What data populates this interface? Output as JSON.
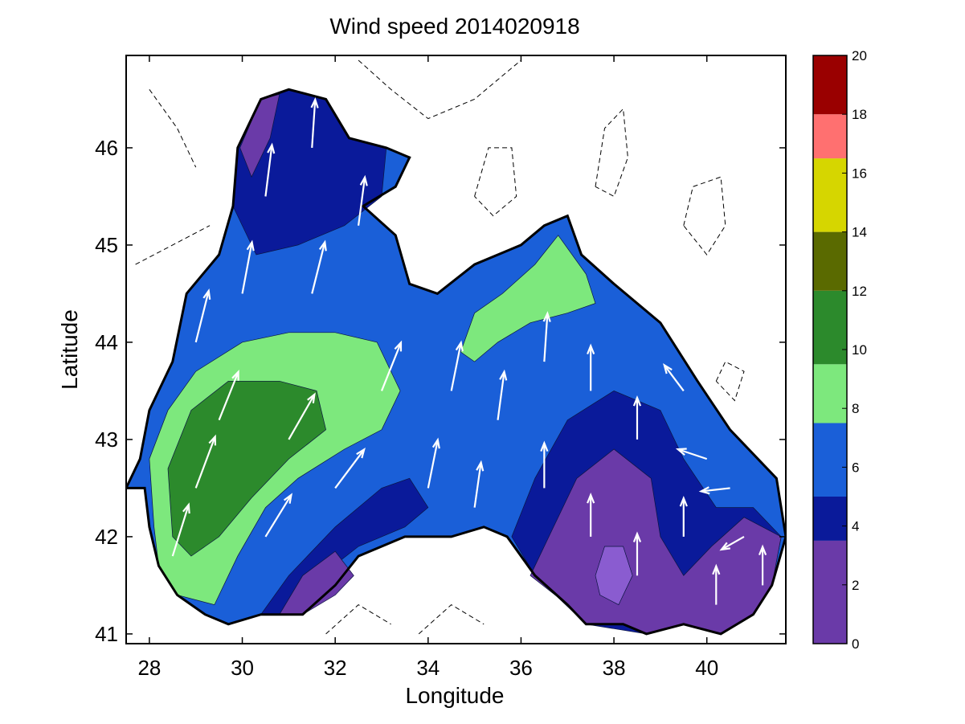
{
  "chart_data": {
    "type": "contour-map",
    "title": "Wind speed 2014020918",
    "xlabel": "Longitude",
    "ylabel": "Latitude",
    "xlim": [
      27.5,
      41.7
    ],
    "ylim": [
      40.9,
      46.95
    ],
    "xticks": [
      28,
      30,
      32,
      34,
      36,
      38,
      40
    ],
    "yticks": [
      41,
      42,
      43,
      44,
      45,
      46
    ],
    "colorbar": {
      "range": [
        0,
        20
      ],
      "ticks": [
        0,
        2,
        4,
        6,
        8,
        10,
        12,
        14,
        16,
        18,
        20
      ],
      "bands": [
        {
          "from": 0,
          "to": 3.5,
          "color": "#6a3aa8"
        },
        {
          "from": 3.5,
          "to": 5,
          "color": "#0a1a9a"
        },
        {
          "from": 5,
          "to": 7.5,
          "color": "#1a5fd8"
        },
        {
          "from": 7.5,
          "to": 9.5,
          "color": "#7de87d"
        },
        {
          "from": 9.5,
          "to": 12,
          "color": "#2c8a2c"
        },
        {
          "from": 12,
          "to": 14,
          "color": "#5a6a00"
        },
        {
          "from": 14,
          "to": 16.5,
          "color": "#d6d600"
        },
        {
          "from": 16.5,
          "to": 18,
          "color": "#ff7070"
        },
        {
          "from": 18,
          "to": 20,
          "color": "#9a0000"
        }
      ]
    },
    "regions": [
      {
        "name": "basin",
        "level": 5.5,
        "color": "#1a5fd8",
        "lonlat": [
          [
            27.5,
            42.5
          ],
          [
            27.8,
            42.8
          ],
          [
            28.0,
            43.3
          ],
          [
            28.5,
            43.8
          ],
          [
            28.8,
            44.5
          ],
          [
            29.5,
            44.9
          ],
          [
            29.8,
            45.4
          ],
          [
            29.9,
            46.0
          ],
          [
            30.4,
            46.5
          ],
          [
            31.0,
            46.6
          ],
          [
            31.8,
            46.5
          ],
          [
            32.3,
            46.1
          ],
          [
            33.1,
            46.0
          ],
          [
            33.6,
            45.9
          ],
          [
            33.3,
            45.6
          ],
          [
            32.6,
            45.4
          ],
          [
            33.3,
            45.1
          ],
          [
            33.6,
            44.6
          ],
          [
            34.2,
            44.5
          ],
          [
            35.0,
            44.8
          ],
          [
            36.0,
            45.0
          ],
          [
            36.5,
            45.2
          ],
          [
            37.0,
            45.3
          ],
          [
            37.3,
            44.9
          ],
          [
            38.0,
            44.6
          ],
          [
            39.0,
            44.2
          ],
          [
            39.8,
            43.6
          ],
          [
            40.5,
            43.1
          ],
          [
            41.5,
            42.6
          ],
          [
            41.7,
            42.0
          ],
          [
            41.4,
            41.5
          ],
          [
            41.0,
            41.2
          ],
          [
            40.3,
            41.0
          ],
          [
            39.5,
            41.1
          ],
          [
            38.7,
            41.0
          ],
          [
            38.2,
            41.1
          ],
          [
            37.4,
            41.1
          ],
          [
            37.0,
            41.3
          ],
          [
            36.3,
            41.6
          ],
          [
            35.7,
            42.0
          ],
          [
            35.2,
            42.1
          ],
          [
            34.5,
            42.0
          ],
          [
            33.5,
            42.0
          ],
          [
            33.0,
            41.9
          ],
          [
            32.5,
            41.8
          ],
          [
            32.0,
            41.5
          ],
          [
            31.3,
            41.2
          ],
          [
            30.4,
            41.2
          ],
          [
            29.7,
            41.1
          ],
          [
            29.2,
            41.2
          ],
          [
            28.6,
            41.4
          ],
          [
            28.2,
            41.7
          ],
          [
            28.0,
            42.1
          ],
          [
            27.9,
            42.5
          ]
        ]
      },
      {
        "name": "band-dark-nw",
        "level": 4.2,
        "color": "#0a1a9a",
        "lonlat": [
          [
            29.9,
            46.0
          ],
          [
            30.4,
            46.5
          ],
          [
            31.0,
            46.6
          ],
          [
            31.8,
            46.5
          ],
          [
            32.3,
            46.1
          ],
          [
            33.1,
            46.0
          ],
          [
            33.0,
            45.5
          ],
          [
            32.2,
            45.2
          ],
          [
            31.2,
            45.0
          ],
          [
            30.3,
            44.9
          ],
          [
            29.8,
            45.4
          ]
        ]
      },
      {
        "name": "band-purple-nw",
        "level": 2.5,
        "color": "#6a3aa8",
        "lonlat": [
          [
            29.95,
            46.0
          ],
          [
            30.4,
            46.5
          ],
          [
            30.8,
            46.55
          ],
          [
            30.6,
            46.1
          ],
          [
            30.2,
            45.7
          ]
        ]
      },
      {
        "name": "band-light-green-w",
        "level": 8.5,
        "color": "#7de87d",
        "lonlat": [
          [
            28.1,
            42.1
          ],
          [
            28.0,
            42.8
          ],
          [
            28.4,
            43.3
          ],
          [
            29.0,
            43.7
          ],
          [
            30.0,
            44.0
          ],
          [
            31.0,
            44.1
          ],
          [
            32.0,
            44.1
          ],
          [
            32.9,
            44.0
          ],
          [
            33.4,
            43.5
          ],
          [
            33.0,
            43.1
          ],
          [
            32.2,
            42.9
          ],
          [
            31.2,
            42.6
          ],
          [
            30.5,
            42.3
          ],
          [
            29.9,
            41.8
          ],
          [
            29.4,
            41.3
          ],
          [
            28.6,
            41.4
          ],
          [
            28.2,
            41.7
          ]
        ]
      },
      {
        "name": "band-green-w",
        "level": 10.5,
        "color": "#2c8a2c",
        "lonlat": [
          [
            28.5,
            42.0
          ],
          [
            28.4,
            42.7
          ],
          [
            28.9,
            43.3
          ],
          [
            29.7,
            43.6
          ],
          [
            30.8,
            43.6
          ],
          [
            31.6,
            43.5
          ],
          [
            31.8,
            43.1
          ],
          [
            31.0,
            42.8
          ],
          [
            30.2,
            42.4
          ],
          [
            29.5,
            42.0
          ],
          [
            28.9,
            41.8
          ]
        ]
      },
      {
        "name": "band-light-green-ne",
        "level": 8.0,
        "color": "#7de87d",
        "lonlat": [
          [
            34.7,
            43.9
          ],
          [
            35.0,
            44.3
          ],
          [
            35.6,
            44.5
          ],
          [
            36.3,
            44.8
          ],
          [
            36.8,
            45.1
          ],
          [
            37.4,
            44.7
          ],
          [
            37.6,
            44.4
          ],
          [
            37.0,
            44.3
          ],
          [
            36.2,
            44.2
          ],
          [
            35.5,
            44.0
          ],
          [
            35.0,
            43.8
          ]
        ]
      },
      {
        "name": "band-dark-s-center",
        "level": 4.3,
        "color": "#0a1a9a",
        "lonlat": [
          [
            31.0,
            41.2
          ],
          [
            31.7,
            41.6
          ],
          [
            32.5,
            41.9
          ],
          [
            33.5,
            42.1
          ],
          [
            34.0,
            42.3
          ],
          [
            33.6,
            42.6
          ],
          [
            33.0,
            42.5
          ],
          [
            32.0,
            42.1
          ],
          [
            31.0,
            41.6
          ],
          [
            30.4,
            41.2
          ]
        ]
      },
      {
        "name": "band-purple-sw",
        "level": 2.8,
        "color": "#6a3aa8",
        "lonlat": [
          [
            30.8,
            41.2
          ],
          [
            31.3,
            41.6
          ],
          [
            32.0,
            41.85
          ],
          [
            32.4,
            41.6
          ],
          [
            32.0,
            41.4
          ],
          [
            31.3,
            41.2
          ]
        ]
      },
      {
        "name": "band-dark-se",
        "level": 4.0,
        "color": "#0a1a9a",
        "lonlat": [
          [
            35.8,
            42.0
          ],
          [
            36.3,
            42.6
          ],
          [
            37.0,
            43.2
          ],
          [
            38.0,
            43.5
          ],
          [
            39.0,
            43.3
          ],
          [
            39.5,
            42.8
          ],
          [
            40.2,
            42.3
          ],
          [
            41.0,
            42.3
          ],
          [
            41.6,
            42.0
          ],
          [
            41.4,
            41.5
          ],
          [
            41.0,
            41.2
          ],
          [
            40.3,
            41.0
          ],
          [
            39.5,
            41.1
          ],
          [
            38.7,
            41.0
          ],
          [
            37.4,
            41.1
          ],
          [
            36.3,
            41.6
          ]
        ]
      },
      {
        "name": "band-purple-se",
        "level": 2.5,
        "color": "#6a3aa8",
        "lonlat": [
          [
            36.2,
            41.6
          ],
          [
            36.6,
            42.0
          ],
          [
            37.2,
            42.6
          ],
          [
            38.0,
            42.9
          ],
          [
            38.8,
            42.6
          ],
          [
            39.0,
            42.0
          ],
          [
            39.5,
            41.6
          ],
          [
            40.1,
            41.9
          ],
          [
            40.8,
            42.2
          ],
          [
            41.6,
            42.0
          ],
          [
            41.4,
            41.5
          ],
          [
            41.0,
            41.2
          ],
          [
            40.3,
            41.0
          ],
          [
            39.5,
            41.1
          ],
          [
            38.7,
            41.0
          ],
          [
            38.2,
            41.1
          ],
          [
            37.4,
            41.1
          ],
          [
            37.0,
            41.3
          ]
        ]
      },
      {
        "name": "band-light-purple-se",
        "level": 1.5,
        "color": "#8a5cd0",
        "lonlat": [
          [
            37.6,
            41.6
          ],
          [
            37.8,
            41.9
          ],
          [
            38.2,
            41.9
          ],
          [
            38.4,
            41.6
          ],
          [
            38.1,
            41.3
          ],
          [
            37.7,
            41.4
          ]
        ]
      }
    ],
    "wind_vectors": [
      {
        "lon": 28.5,
        "lat": 41.8,
        "u": 0.5,
        "v": 1.6
      },
      {
        "lon": 29.0,
        "lat": 42.5,
        "u": 0.6,
        "v": 1.6
      },
      {
        "lon": 29.5,
        "lat": 43.2,
        "u": 0.6,
        "v": 1.5
      },
      {
        "lon": 29.0,
        "lat": 44.0,
        "u": 0.4,
        "v": 1.6
      },
      {
        "lon": 30.0,
        "lat": 44.5,
        "u": 0.3,
        "v": 1.6
      },
      {
        "lon": 30.5,
        "lat": 45.5,
        "u": 0.2,
        "v": 1.6
      },
      {
        "lon": 31.5,
        "lat": 46.0,
        "u": 0.1,
        "v": 1.5
      },
      {
        "lon": 30.5,
        "lat": 42.0,
        "u": 0.8,
        "v": 1.3
      },
      {
        "lon": 31.0,
        "lat": 43.0,
        "u": 0.8,
        "v": 1.4
      },
      {
        "lon": 31.5,
        "lat": 44.5,
        "u": 0.4,
        "v": 1.6
      },
      {
        "lon": 32.5,
        "lat": 45.2,
        "u": 0.2,
        "v": 1.5
      },
      {
        "lon": 32.0,
        "lat": 42.5,
        "u": 0.9,
        "v": 1.2
      },
      {
        "lon": 33.0,
        "lat": 43.5,
        "u": 0.6,
        "v": 1.5
      },
      {
        "lon": 34.0,
        "lat": 42.5,
        "u": 0.3,
        "v": 1.5
      },
      {
        "lon": 34.5,
        "lat": 43.5,
        "u": 0.3,
        "v": 1.5
      },
      {
        "lon": 35.0,
        "lat": 42.3,
        "u": 0.2,
        "v": 1.4
      },
      {
        "lon": 35.5,
        "lat": 43.2,
        "u": 0.2,
        "v": 1.5
      },
      {
        "lon": 36.5,
        "lat": 42.5,
        "u": 0.0,
        "v": 1.4
      },
      {
        "lon": 36.5,
        "lat": 43.8,
        "u": 0.1,
        "v": 1.5
      },
      {
        "lon": 37.5,
        "lat": 42.0,
        "u": 0.0,
        "v": 1.3
      },
      {
        "lon": 37.5,
        "lat": 43.5,
        "u": 0.0,
        "v": 1.4
      },
      {
        "lon": 38.5,
        "lat": 41.6,
        "u": 0.0,
        "v": 1.3
      },
      {
        "lon": 38.5,
        "lat": 43.0,
        "u": 0.0,
        "v": 1.3
      },
      {
        "lon": 39.5,
        "lat": 42.0,
        "u": 0.0,
        "v": 1.2
      },
      {
        "lon": 39.5,
        "lat": 43.5,
        "u": -0.6,
        "v": 0.8
      },
      {
        "lon": 40.0,
        "lat": 42.8,
        "u": -0.9,
        "v": 0.3
      },
      {
        "lon": 40.5,
        "lat": 42.5,
        "u": -0.9,
        "v": -0.1
      },
      {
        "lon": 40.8,
        "lat": 42.0,
        "u": -0.7,
        "v": -0.4
      },
      {
        "lon": 41.2,
        "lat": 41.5,
        "u": 0.0,
        "v": 1.2
      },
      {
        "lon": 40.2,
        "lat": 41.3,
        "u": 0.0,
        "v": 1.2
      }
    ],
    "isolines_outside": [
      {
        "lonlat": [
          [
            37.6,
            45.6
          ],
          [
            37.8,
            46.2
          ],
          [
            38.2,
            46.4
          ],
          [
            38.3,
            45.9
          ],
          [
            38.0,
            45.5
          ],
          [
            37.6,
            45.6
          ]
        ]
      },
      {
        "lonlat": [
          [
            35.0,
            45.5
          ],
          [
            35.3,
            46.0
          ],
          [
            35.8,
            46.0
          ],
          [
            35.9,
            45.5
          ],
          [
            35.4,
            45.3
          ],
          [
            35.0,
            45.5
          ]
        ]
      },
      {
        "lonlat": [
          [
            39.5,
            45.2
          ],
          [
            39.7,
            45.6
          ],
          [
            40.3,
            45.7
          ],
          [
            40.4,
            45.2
          ],
          [
            40.0,
            44.9
          ],
          [
            39.5,
            45.2
          ]
        ]
      },
      {
        "lonlat": [
          [
            40.2,
            43.6
          ],
          [
            40.4,
            43.8
          ],
          [
            40.8,
            43.7
          ],
          [
            40.6,
            43.4
          ],
          [
            40.2,
            43.6
          ]
        ]
      },
      {
        "lonlat": [
          [
            27.7,
            44.8
          ],
          [
            28.5,
            45.0
          ],
          [
            29.3,
            45.2
          ]
        ]
      },
      {
        "lonlat": [
          [
            28.0,
            46.6
          ],
          [
            28.6,
            46.2
          ],
          [
            29.0,
            45.8
          ]
        ]
      },
      {
        "lonlat": [
          [
            32.5,
            46.9
          ],
          [
            33.2,
            46.6
          ],
          [
            34.0,
            46.3
          ],
          [
            35.0,
            46.5
          ],
          [
            36.0,
            46.9
          ]
        ]
      },
      {
        "lonlat": [
          [
            33.8,
            41.0
          ],
          [
            34.5,
            41.3
          ],
          [
            35.2,
            41.1
          ]
        ]
      },
      {
        "lonlat": [
          [
            31.8,
            41.0
          ],
          [
            32.5,
            41.3
          ],
          [
            33.2,
            41.1
          ]
        ]
      }
    ]
  }
}
